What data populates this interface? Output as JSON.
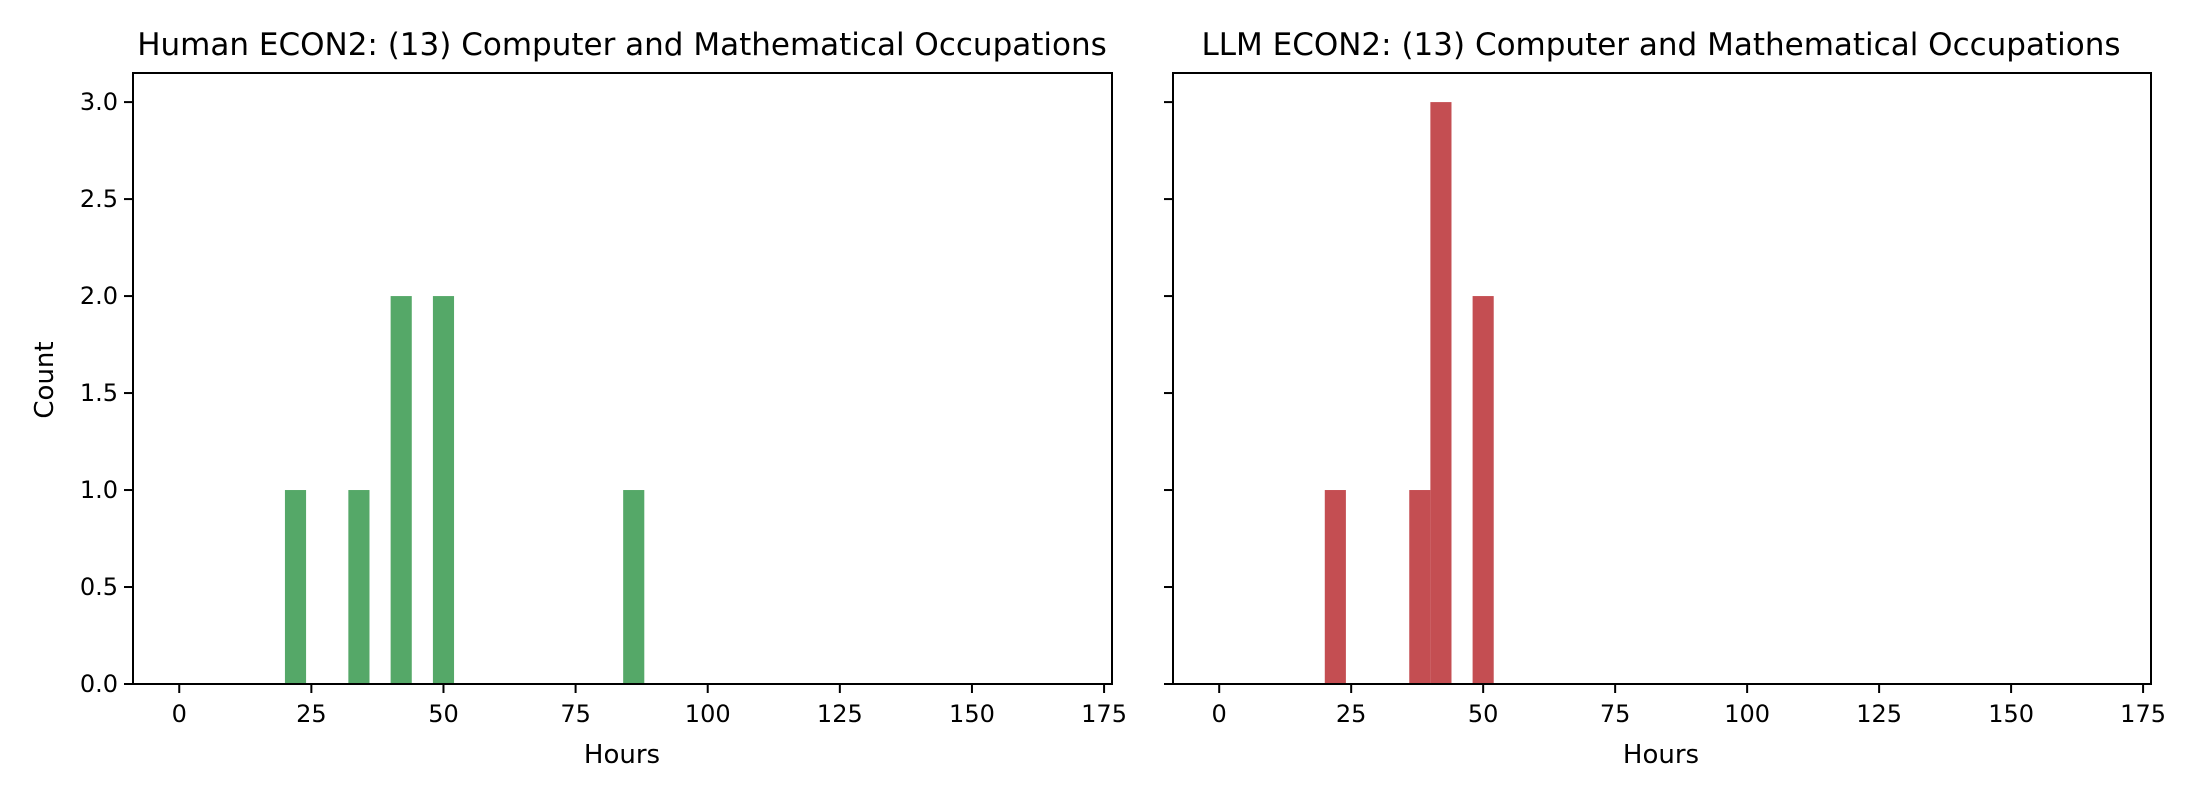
{
  "chart_data": [
    {
      "type": "bar",
      "title": "Human ECON2: (13) Computer and Mathematical Occupations",
      "xlabel": "Hours",
      "ylabel": "Count",
      "color": "#55a868",
      "bin_width": 4,
      "bins": [
        {
          "start": 20,
          "end": 24,
          "count": 1
        },
        {
          "start": 32,
          "end": 36,
          "count": 1
        },
        {
          "start": 40,
          "end": 44,
          "count": 2
        },
        {
          "start": 48,
          "end": 52,
          "count": 2
        },
        {
          "start": 84,
          "end": 88,
          "count": 1
        }
      ],
      "xlim": [
        -8.75,
        176.5
      ],
      "ylim": [
        0,
        3.15
      ],
      "xticks": [
        0,
        25,
        50,
        75,
        100,
        125,
        150,
        175
      ],
      "yticks": [
        "0.0",
        "0.5",
        "1.0",
        "1.5",
        "2.0",
        "2.5",
        "3.0"
      ],
      "grid": false
    },
    {
      "type": "bar",
      "title": "LLM ECON2: (13) Computer and Mathematical Occupations",
      "xlabel": "Hours",
      "ylabel": "",
      "color": "#c44e52",
      "bin_width": 4,
      "bins": [
        {
          "start": 20,
          "end": 24,
          "count": 1
        },
        {
          "start": 36,
          "end": 40,
          "count": 1
        },
        {
          "start": 40,
          "end": 44,
          "count": 3
        },
        {
          "start": 48,
          "end": 52,
          "count": 2
        }
      ],
      "xlim": [
        -8.75,
        176.5
      ],
      "ylim": [
        0,
        3.15
      ],
      "xticks": [
        0,
        25,
        50,
        75,
        100,
        125,
        150,
        175
      ],
      "yticks": [
        "0.0",
        "0.5",
        "1.0",
        "1.5",
        "2.0",
        "2.5",
        "3.0"
      ],
      "shared_y": true,
      "grid": false
    }
  ]
}
